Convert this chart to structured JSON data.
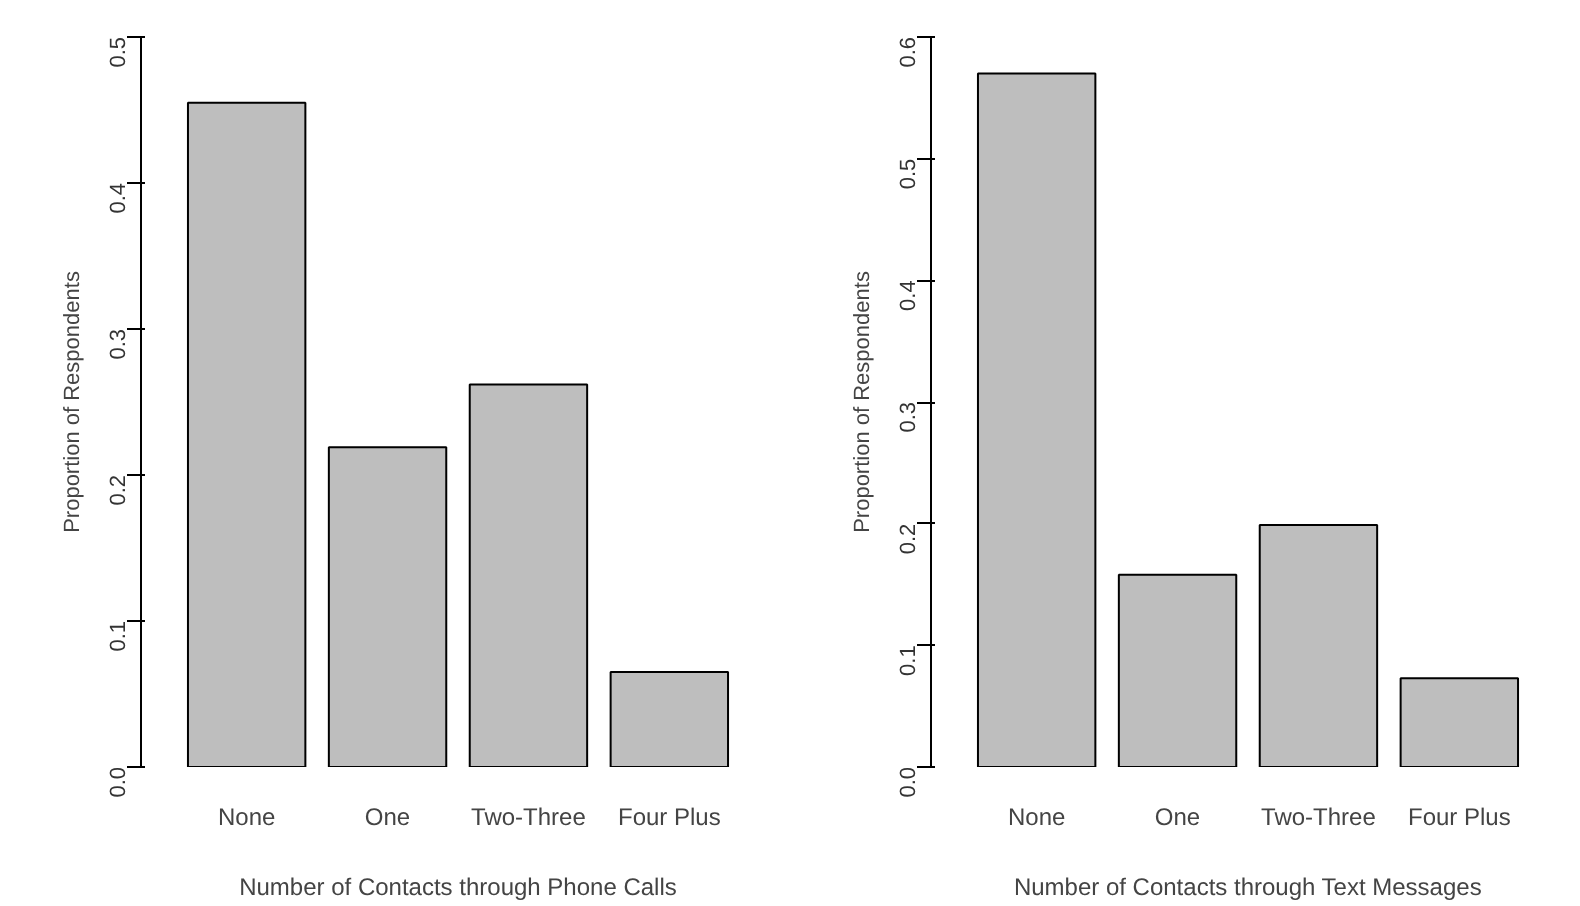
{
  "chart_data": [
    {
      "type": "bar",
      "categories": [
        "None",
        "One",
        "Two-Three",
        "Four Plus"
      ],
      "values": [
        0.455,
        0.219,
        0.262,
        0.065
      ],
      "color": "#bebebe",
      "xlabel": "Number of Contacts through Phone Calls",
      "ylabel": "Proportion of Respondents",
      "ylim": [
        0,
        0.5
      ],
      "yticks": [
        {
          "value": 0,
          "label": "0.0"
        },
        0.1,
        0.2,
        0.3,
        0.4,
        0.5
      ]
    },
    {
      "type": "bar",
      "categories": [
        "None",
        "One",
        "Two-Three",
        "Four Plus"
      ],
      "values": [
        0.57,
        0.158,
        0.199,
        0.073
      ],
      "color": "#bebebe",
      "xlabel": "Number of Contacts through Text Messages",
      "ylabel": "Proportion of Respondents",
      "ylim": [
        0,
        0.6
      ],
      "yticks": [
        {
          "value": 0,
          "label": "0.0"
        },
        0.1,
        0.2,
        0.3,
        0.4,
        0.5,
        0.6
      ]
    }
  ]
}
